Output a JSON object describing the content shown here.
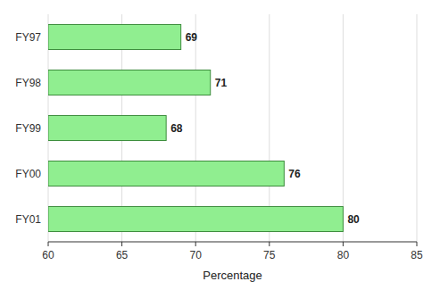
{
  "chart_data": {
    "type": "bar",
    "orientation": "horizontal",
    "categories": [
      "FY01",
      "FY00",
      "FY99",
      "FY98",
      "FY97"
    ],
    "values": [
      80,
      76,
      68,
      71,
      69
    ],
    "color": "#90EE90",
    "xlabel": "Percentage",
    "xlim": [
      60,
      85
    ],
    "xticks": [
      60,
      65,
      70,
      75,
      80,
      85
    ],
    "grid": true,
    "data_labels": true
  }
}
